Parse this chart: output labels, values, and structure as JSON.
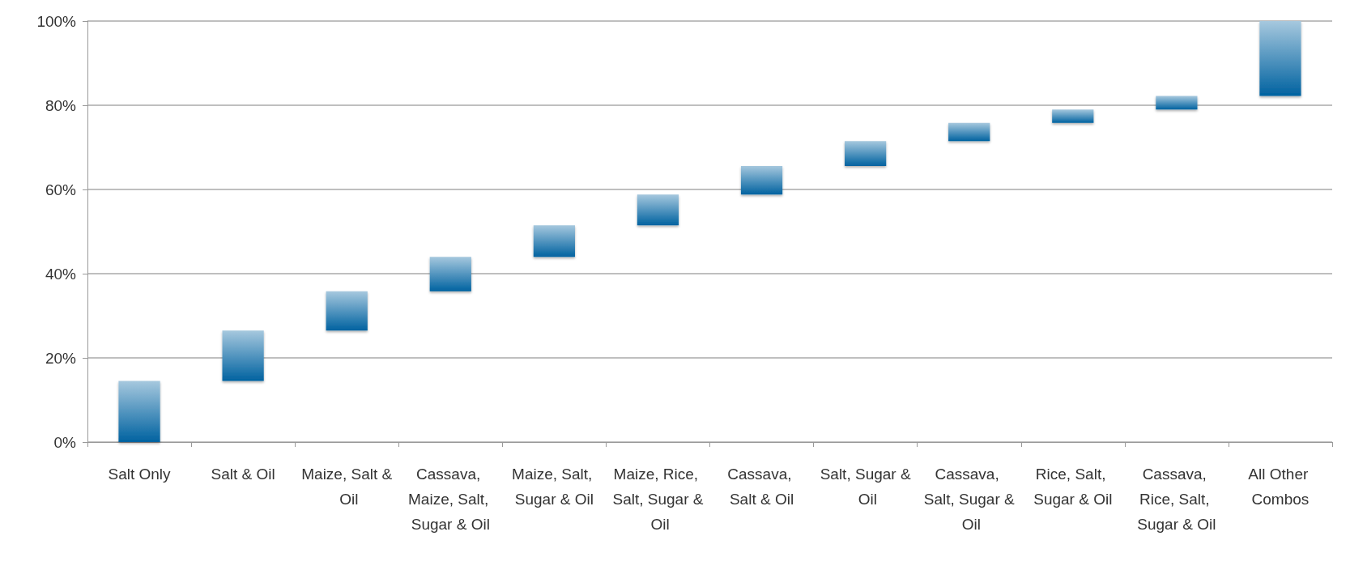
{
  "chart_data": {
    "type": "bar",
    "categories": [
      "Salt Only",
      "Salt & Oil",
      "Maize, Salt & Oil",
      "Cassava, Maize, Salt, Sugar & Oil",
      "Maize, Salt, Sugar & Oil",
      "Maize, Rice, Salt, Sugar & Oil",
      "Cassava, Salt & Oil",
      "Salt, Sugar & Oil",
      "Cassava, Salt, Sugar & Oil",
      "Rice, Salt, Sugar & Oil",
      "Cassava, Rice, Salt, Sugar & Oil",
      "All Other Combos"
    ],
    "base": [
      0,
      14.5,
      26.5,
      35.8,
      44,
      51.5,
      58.8,
      65.6,
      71.5,
      75.8,
      79,
      82.2
    ],
    "values": [
      14.5,
      12,
      9.3,
      8.2,
      7.5,
      7.3,
      6.8,
      5.9,
      4.3,
      3.2,
      3.2,
      17.8
    ],
    "color": "#0062a0",
    "ylim": [
      0,
      100
    ],
    "yticks": [
      {
        "value": 0,
        "label": "0%"
      },
      {
        "value": 20,
        "label": "20%"
      },
      {
        "value": 40,
        "label": "40%"
      },
      {
        "value": 60,
        "label": "60%"
      },
      {
        "value": 80,
        "label": "80%"
      },
      {
        "value": 100,
        "label": "100%"
      }
    ],
    "grid": "y"
  }
}
